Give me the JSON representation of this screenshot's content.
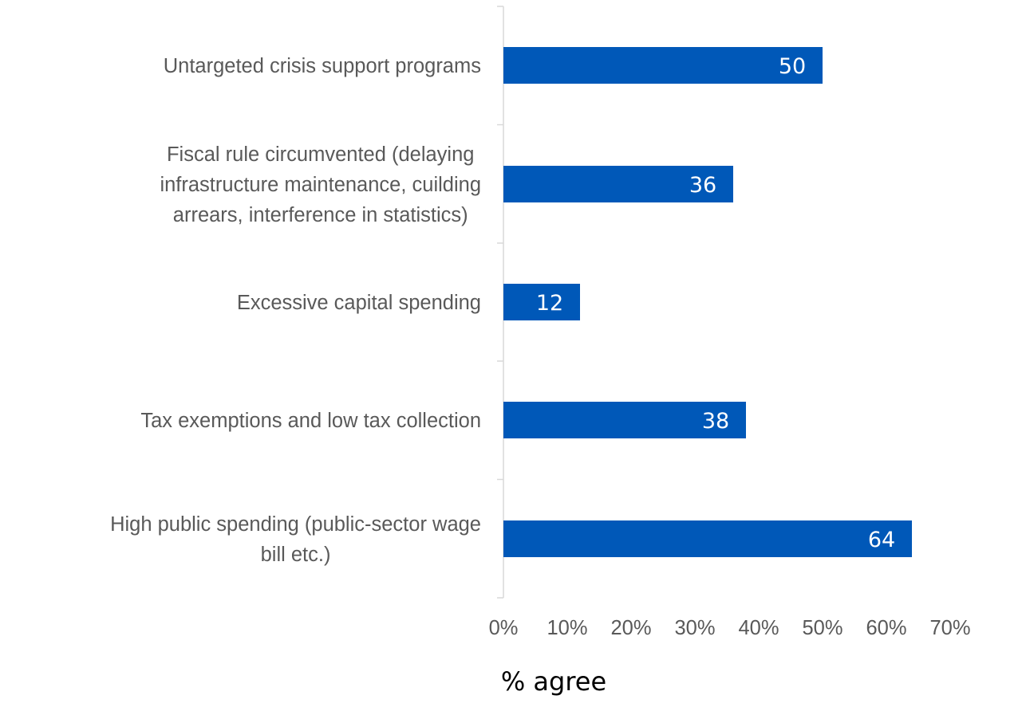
{
  "chart_data": {
    "type": "bar",
    "orientation": "horizontal",
    "categories": [
      [
        "Untargeted crisis support programs"
      ],
      [
        "Fiscal rule circumvented (delaying",
        "infrastructure maintenance, cuilding",
        "arrears, interference in statistics)"
      ],
      [
        "Excessive capital spending"
      ],
      [
        "Tax exemptions and low tax collection"
      ],
      [
        "High public spending (public-sector wage",
        "bill etc.)"
      ]
    ],
    "values": [
      50,
      36,
      12,
      38,
      64
    ],
    "data_labels": [
      "50",
      "36",
      "12",
      "38",
      "64"
    ],
    "xlabel": "% agree",
    "xlim": [
      0,
      70
    ],
    "x_ticks": [
      0,
      10,
      20,
      30,
      40,
      50,
      60,
      70
    ],
    "x_tick_labels": [
      "0%",
      "10%",
      "20%",
      "30%",
      "40%",
      "50%",
      "60%",
      "70%"
    ],
    "bar_color": "#0058b8",
    "grid": false,
    "legend": "none"
  }
}
